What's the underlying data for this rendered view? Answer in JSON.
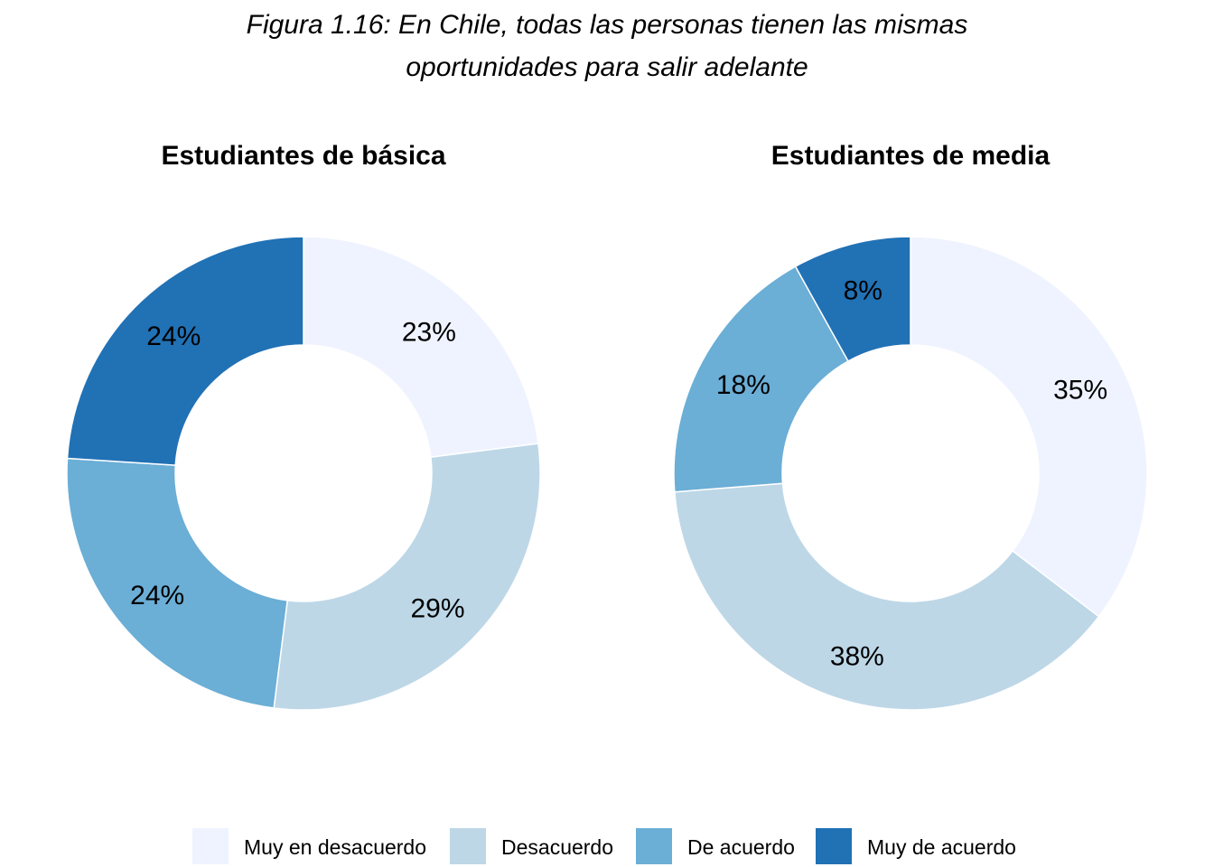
{
  "title_line1": "Figura 1.16: En Chile, todas las personas tienen las mismas",
  "title_line2": "oportunidades para salir adelante",
  "chart_data": [
    {
      "type": "pie",
      "subtype": "donut",
      "title": "Estudiantes de básica",
      "categories": [
        "Muy en desacuerdo",
        "Desacuerdo",
        "De acuerdo",
        "Muy de acuerdo"
      ],
      "values": [
        23,
        29,
        24,
        24
      ],
      "labels": [
        "23%",
        "29%",
        "24%",
        "24%"
      ]
    },
    {
      "type": "pie",
      "subtype": "donut",
      "title": "Estudiantes de media",
      "categories": [
        "Muy en desacuerdo",
        "Desacuerdo",
        "De acuerdo",
        "Muy de acuerdo"
      ],
      "values": [
        35,
        38,
        18,
        8
      ],
      "labels": [
        "35%",
        "38%",
        "18%",
        "8%"
      ]
    }
  ],
  "legend": {
    "placement": "bottom",
    "items": [
      "Muy en desacuerdo",
      "Desacuerdo",
      "De acuerdo",
      "Muy de acuerdo"
    ]
  },
  "colors": [
    "#eff3ff",
    "#bdd7e7",
    "#6baed6",
    "#2171b5"
  ]
}
